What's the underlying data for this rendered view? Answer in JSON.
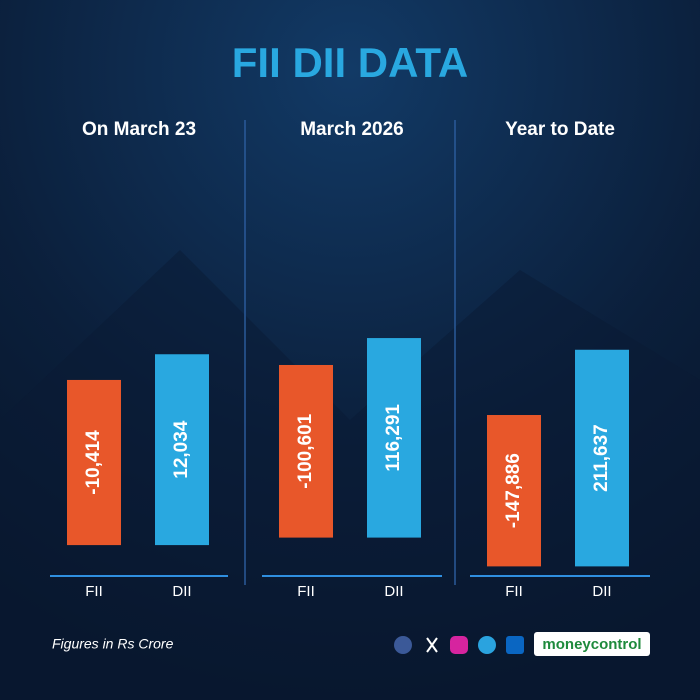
{
  "title": "FII DII DATA",
  "footnote": "Figures in Rs Crore",
  "brand": "moneycontrol",
  "chart_data": [
    {
      "type": "bar",
      "title": "On March 23",
      "categories": [
        "FII",
        "DII"
      ],
      "values": [
        -10414,
        12034
      ],
      "value_labels": [
        "-10,414",
        "12,034"
      ],
      "colors": [
        "#e8572a",
        "#29a8e0"
      ],
      "ylim": [
        -12300,
        14500
      ]
    },
    {
      "type": "bar",
      "title": "March 2026",
      "categories": [
        "FII",
        "DII"
      ],
      "values": [
        -100601,
        116291
      ],
      "value_labels": [
        "-100,601",
        "116,291"
      ],
      "colors": [
        "#e8572a",
        "#29a8e0"
      ],
      "ylim": [
        -122400,
        125300
      ]
    },
    {
      "type": "bar",
      "title": "Year to Date",
      "categories": [
        "FII",
        "DII"
      ],
      "values": [
        -147886,
        211637
      ],
      "value_labels": [
        "-147,886",
        "211,637"
      ],
      "colors": [
        "#e8572a",
        "#29a8e0"
      ],
      "ylim": [
        -156300,
        258900
      ]
    }
  ]
}
